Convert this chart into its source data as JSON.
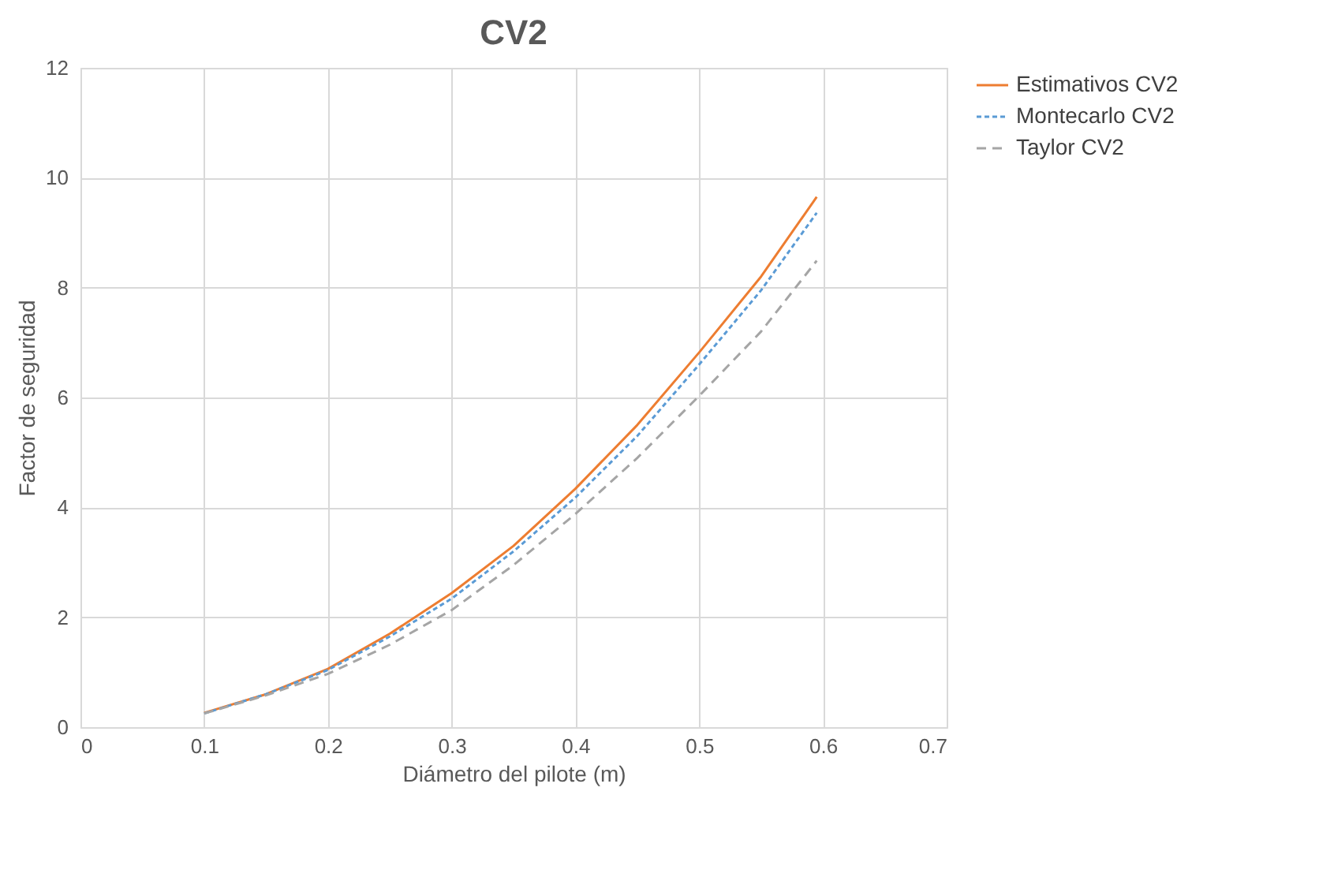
{
  "chart_data": {
    "type": "line",
    "title": "CV2",
    "xlabel": "Diámetro del pilote (m)",
    "ylabel": "Factor de seguridad",
    "x": [
      0.1,
      0.15,
      0.2,
      0.25,
      0.3,
      0.35,
      0.4,
      0.45,
      0.5,
      0.55,
      0.595
    ],
    "series": [
      {
        "name": "Estimativos CV2",
        "color": "#ed7d31",
        "line_style": "solid",
        "values": [
          0.26,
          0.6,
          1.06,
          1.7,
          2.44,
          3.3,
          4.34,
          5.5,
          6.82,
          8.2,
          9.65
        ]
      },
      {
        "name": "Montecarlo CV2",
        "color": "#5b9bd5",
        "line_style": "dotted",
        "values": [
          0.25,
          0.6,
          1.04,
          1.65,
          2.34,
          3.2,
          4.18,
          5.3,
          6.6,
          7.95,
          9.36
        ]
      },
      {
        "name": "Taylor CV2",
        "color": "#a5a5a5",
        "line_style": "dashed",
        "values": [
          0.25,
          0.58,
          0.97,
          1.5,
          2.13,
          2.95,
          3.88,
          4.9,
          6.03,
          7.2,
          8.49
        ]
      }
    ],
    "xlim": [
      0,
      0.7
    ],
    "xticks": [
      0,
      0.1,
      0.2,
      0.3,
      0.4,
      0.5,
      0.6,
      0.7
    ],
    "ylim": [
      0,
      12
    ],
    "yticks": [
      0,
      2,
      4,
      6,
      8,
      10,
      12
    ],
    "grid": true,
    "legend": "right",
    "marker": "none"
  }
}
